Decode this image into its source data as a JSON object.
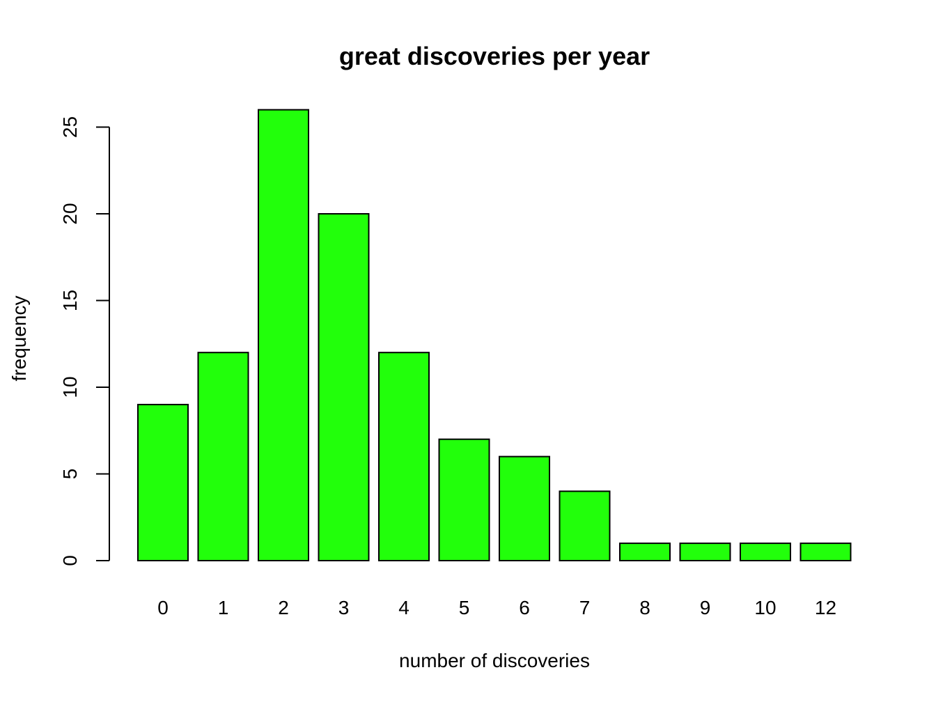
{
  "chart_data": {
    "type": "bar",
    "title": "great discoveries per year",
    "xlabel": "number of discoveries",
    "ylabel": "frequency",
    "categories": [
      "0",
      "1",
      "2",
      "3",
      "4",
      "5",
      "6",
      "7",
      "8",
      "9",
      "10",
      "12"
    ],
    "values": [
      9,
      12,
      26,
      20,
      12,
      7,
      6,
      4,
      1,
      1,
      1,
      1
    ],
    "ylim": [
      0,
      26
    ],
    "yticks": [
      0,
      5,
      10,
      15,
      20,
      25
    ],
    "grid": false,
    "legend": "none",
    "colors": {
      "bar_fill": "#22ff0b",
      "bar_stroke": "#000000"
    }
  }
}
